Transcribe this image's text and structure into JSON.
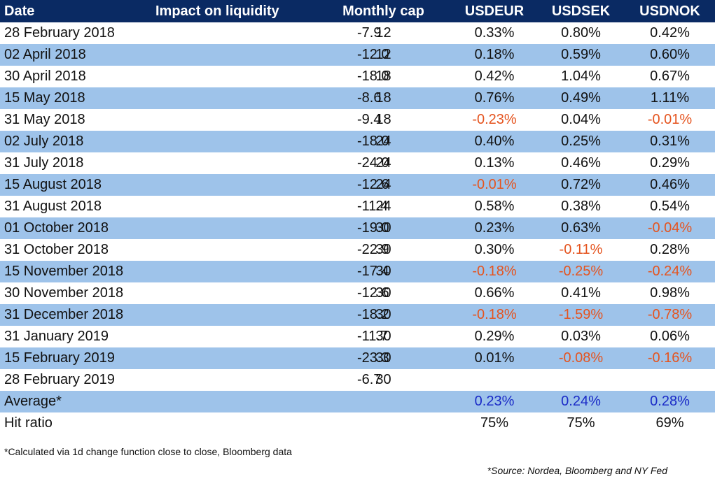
{
  "header": {
    "date": "Date",
    "impact": "Impact on liquidity",
    "cap": "Monthly cap",
    "usdeur": "USDEUR",
    "usdsek": "USDSEK",
    "usdnok": "USDNOK"
  },
  "rows": [
    {
      "date": "28 February 2018",
      "impact": "-7.9",
      "cap": "12",
      "usdeur": "0.33%",
      "usdsek": "0.80%",
      "usdnok": "0.42%"
    },
    {
      "date": "02 April 2018",
      "impact": "-12.0",
      "cap": "12",
      "usdeur": "0.18%",
      "usdsek": "0.59%",
      "usdnok": "0.60%"
    },
    {
      "date": "30 April 2018",
      "impact": "-18.0",
      "cap": "18",
      "usdeur": "0.42%",
      "usdsek": "1.04%",
      "usdnok": "0.67%"
    },
    {
      "date": "15 May 2018",
      "impact": "-8.6",
      "cap": "18",
      "usdeur": "0.76%",
      "usdsek": "0.49%",
      "usdnok": "1.11%"
    },
    {
      "date": "31 May 2018",
      "impact": "-9.4",
      "cap": "18",
      "usdeur": "-0.23%",
      "usdsek": "0.04%",
      "usdnok": "-0.01%"
    },
    {
      "date": "02 July 2018",
      "impact": "-18.0",
      "cap": "24",
      "usdeur": "0.40%",
      "usdsek": "0.25%",
      "usdnok": "0.31%"
    },
    {
      "date": "31 July 2018",
      "impact": "-24.0",
      "cap": "24",
      "usdeur": "0.13%",
      "usdsek": "0.46%",
      "usdnok": "0.29%"
    },
    {
      "date": "15 August 2018",
      "impact": "-12.6",
      "cap": "24",
      "usdeur": "-0.01%",
      "usdsek": "0.72%",
      "usdnok": "0.46%"
    },
    {
      "date": "31 August 2018",
      "impact": "-11.4",
      "cap": "24",
      "usdeur": "0.58%",
      "usdsek": "0.38%",
      "usdnok": "0.54%"
    },
    {
      "date": "01 October 2018",
      "impact": "-19.0",
      "cap": "30",
      "usdeur": "0.23%",
      "usdsek": "0.63%",
      "usdnok": "-0.04%"
    },
    {
      "date": "31 October 2018",
      "impact": "-22.9",
      "cap": "30",
      "usdeur": "0.30%",
      "usdsek": "-0.11%",
      "usdnok": "0.28%"
    },
    {
      "date": "15 November 2018",
      "impact": "-17.4",
      "cap": "30",
      "usdeur": "-0.18%",
      "usdsek": "-0.25%",
      "usdnok": "-0.24%"
    },
    {
      "date": "30 November 2018",
      "impact": "-12.6",
      "cap": "30",
      "usdeur": "0.66%",
      "usdsek": "0.41%",
      "usdnok": "0.98%"
    },
    {
      "date": "31 December 2018",
      "impact": "-18.2",
      "cap": "30",
      "usdeur": "-0.18%",
      "usdsek": "-1.59%",
      "usdnok": "-0.78%"
    },
    {
      "date": "31 January 2019",
      "impact": "-11.7",
      "cap": "30",
      "usdeur": "0.29%",
      "usdsek": "0.03%",
      "usdnok": "0.06%"
    },
    {
      "date": "15 February 2019",
      "impact": "-23.3",
      "cap": "30",
      "usdeur": "0.01%",
      "usdsek": "-0.08%",
      "usdnok": "-0.16%"
    },
    {
      "date": "28 February 2019",
      "impact": "-6.7",
      "cap": "30",
      "usdeur": "",
      "usdsek": "",
      "usdnok": ""
    }
  ],
  "average": {
    "label": "Average*",
    "usdeur": "0.23%",
    "usdsek": "0.24%",
    "usdnok": "0.28%"
  },
  "hit_ratio": {
    "label": "Hit ratio",
    "usdeur": "75%",
    "usdsek": "75%",
    "usdnok": "69%"
  },
  "footnote": "*Calculated via 1d change function close to close, Bloomberg data",
  "source": "*Source: Nordea, Bloomberg and NY Fed",
  "colors": {
    "header_bg": "#0a2a63",
    "row_shade": "#9ec3ea",
    "negative": "#e5541f",
    "average": "#1a2ac7"
  }
}
